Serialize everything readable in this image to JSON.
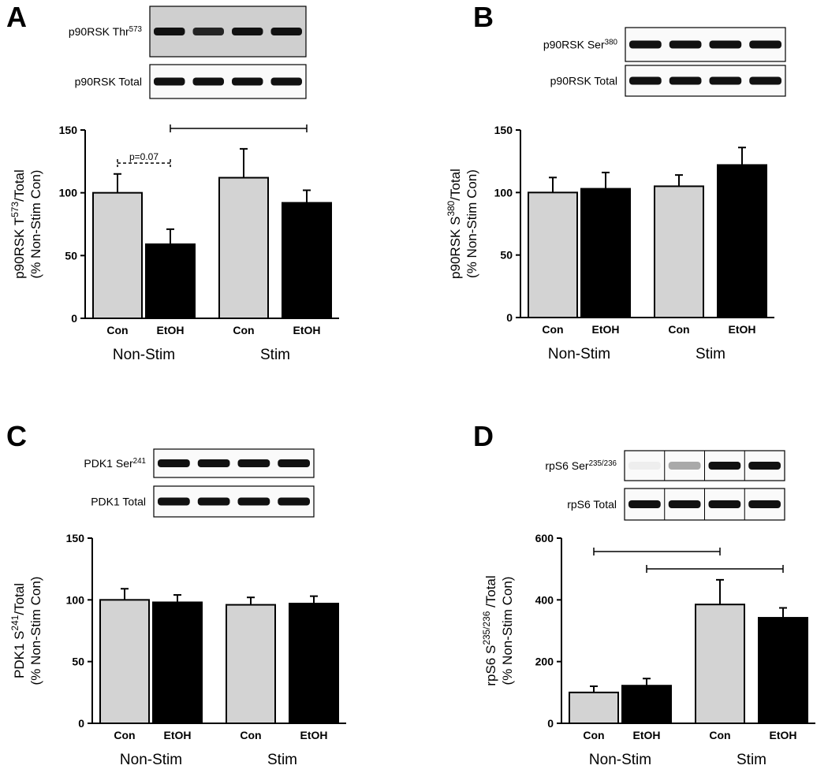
{
  "chart_data": [
    {
      "type": "bar",
      "panel": "A",
      "blots": [
        [
          "p90RSK Thr",
          "573"
        ],
        [
          "p90RSK Total"
        ]
      ],
      "ylabel": [
        "p90RSK T",
        "573",
        "/Total"
      ],
      "ylabel2": "(% Non-Stim Con)",
      "categories": [
        "Con",
        "EtOH",
        "Con",
        "EtOH"
      ],
      "groups": [
        "Non-Stim",
        "Stim"
      ],
      "values": [
        100,
        59,
        112,
        92
      ],
      "errors": [
        15,
        12,
        23,
        10
      ],
      "colors": [
        "#d3d3d3",
        "#000000",
        "#d3d3d3",
        "#000000"
      ],
      "ylim": [
        0,
        150
      ],
      "yticks": [
        0,
        50,
        100,
        150
      ],
      "brackets": [
        {
          "from": 1,
          "to": 3,
          "style": "solid"
        },
        {
          "from": 0,
          "to": 1,
          "style": "dashed",
          "label": "p=0.07"
        }
      ]
    },
    {
      "type": "bar",
      "panel": "B",
      "blots": [
        [
          "p90RSK Ser",
          "380"
        ],
        [
          "p90RSK Total"
        ]
      ],
      "ylabel": [
        "p90RSK S",
        "380",
        "/Total"
      ],
      "ylabel2": "(% Non-Stim Con)",
      "categories": [
        "Con",
        "EtOH",
        "Con",
        "EtOH"
      ],
      "groups": [
        "Non-Stim",
        "Stim"
      ],
      "values": [
        100,
        103,
        105,
        122
      ],
      "errors": [
        12,
        13,
        9,
        14
      ],
      "colors": [
        "#d3d3d3",
        "#000000",
        "#d3d3d3",
        "#000000"
      ],
      "ylim": [
        0,
        150
      ],
      "yticks": [
        0,
        50,
        100,
        150
      ],
      "brackets": []
    },
    {
      "type": "bar",
      "panel": "C",
      "blots": [
        [
          "PDK1 Ser",
          "241"
        ],
        [
          "PDK1 Total"
        ]
      ],
      "ylabel": [
        "PDK1 S",
        "241",
        "/Total"
      ],
      "ylabel2": "(% Non-Stim Con)",
      "categories": [
        "Con",
        "EtOH",
        "Con",
        "EtOH"
      ],
      "groups": [
        "Non-Stim",
        "Stim"
      ],
      "values": [
        100,
        98,
        96,
        97
      ],
      "errors": [
        9,
        6,
        6,
        6
      ],
      "colors": [
        "#d3d3d3",
        "#000000",
        "#d3d3d3",
        "#000000"
      ],
      "ylim": [
        0,
        150
      ],
      "yticks": [
        0,
        50,
        100,
        150
      ],
      "brackets": []
    },
    {
      "type": "bar",
      "panel": "D",
      "blots": [
        [
          "rpS6 Ser",
          "235/236"
        ],
        [
          "rpS6 Total"
        ]
      ],
      "ylabel": [
        "rpS6  S",
        "235/236",
        " /Total"
      ],
      "ylabel2": "(% Non-Stim Con)",
      "categories": [
        "Con",
        "EtOH",
        "Con",
        "EtOH"
      ],
      "groups": [
        "Non-Stim",
        "Stim"
      ],
      "values": [
        100,
        122,
        385,
        342
      ],
      "errors": [
        20,
        23,
        80,
        32
      ],
      "colors": [
        "#d3d3d3",
        "#000000",
        "#d3d3d3",
        "#000000"
      ],
      "ylim": [
        0,
        600
      ],
      "yticks": [
        0,
        200,
        400,
        600
      ],
      "brackets": [
        {
          "from": 0,
          "to": 2,
          "style": "solid"
        },
        {
          "from": 1,
          "to": 3,
          "style": "solid"
        }
      ]
    }
  ]
}
